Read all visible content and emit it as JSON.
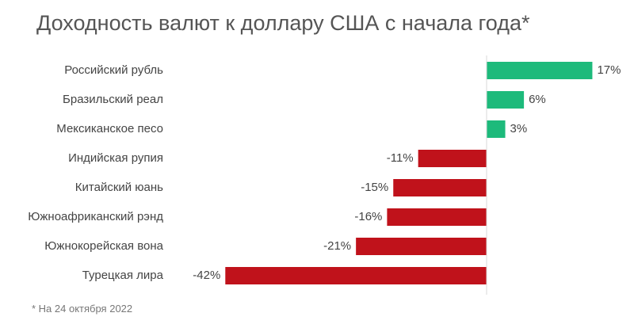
{
  "chart_data": {
    "type": "bar",
    "orientation": "horizontal",
    "title": "Доходность валют к доллару США с начала года*",
    "footnote": "* На 24 октября 2022",
    "categories": [
      "Российский рубль",
      "Бразильский реал",
      "Мексиканское песо",
      "Индийская рупия",
      "Китайский юань",
      "Южноафриканский рэнд",
      "Южнокорейская вона",
      "Турецкая лира"
    ],
    "values": [
      17,
      6,
      3,
      -11,
      -15,
      -16,
      -21,
      -42
    ],
    "value_labels": [
      "17%",
      "6%",
      "3%",
      "-11%",
      "-15%",
      "-16%",
      "-21%",
      "-42%"
    ],
    "unit": "%",
    "positive_color": "#1dba7b",
    "negative_color": "#c0121b",
    "grid": false
  }
}
